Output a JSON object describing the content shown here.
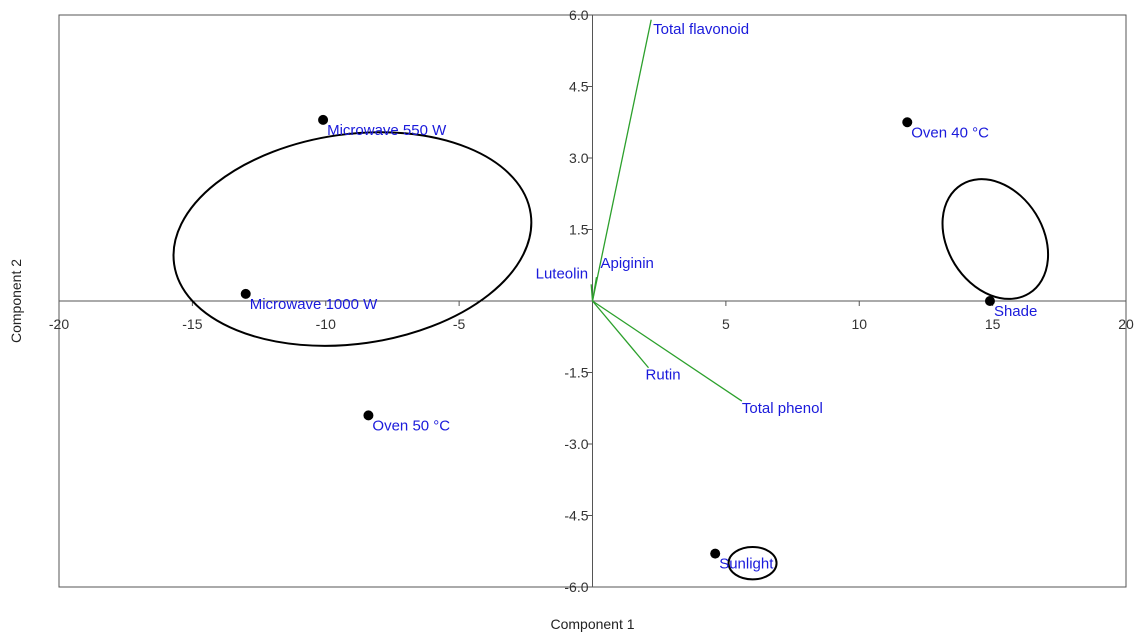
{
  "chart_data": {
    "type": "scatter",
    "subtype": "biplot",
    "title": "",
    "xlabel": "Component 1",
    "ylabel": "Component 2",
    "xlim": [
      -20,
      20
    ],
    "ylim": [
      -6.0,
      6.0
    ],
    "xticks": [
      "-20",
      "-15",
      "-10",
      "-5",
      "5",
      "10",
      "15",
      "20"
    ],
    "yticks": [
      "6.0",
      "4.5",
      "3.0",
      "1.5",
      "-1.5",
      "-3.0",
      "-4.5",
      "-6.0"
    ],
    "grid": false,
    "points": [
      {
        "label": "Microwave 550 W",
        "x": -10.1,
        "y": 3.8
      },
      {
        "label": "Microwave 1000 W",
        "x": -13.0,
        "y": 0.15
      },
      {
        "label": "Oven 50 °C",
        "x": -8.4,
        "y": -2.4
      },
      {
        "label": "Oven 40 °C",
        "x": 11.8,
        "y": 3.75
      },
      {
        "label": "Shade",
        "x": 14.9,
        "y": 0.0
      },
      {
        "label": "Sunlight",
        "x": 4.6,
        "y": -5.3
      }
    ],
    "loadings": [
      {
        "label": "Total flavonoid",
        "x": 2.2,
        "y": 5.9
      },
      {
        "label": "Apiginin",
        "x": 0.15,
        "y": 0.5
      },
      {
        "label": "Luteolin",
        "x": -0.05,
        "y": 0.35
      },
      {
        "label": "Rutin",
        "x": 2.1,
        "y": -1.4
      },
      {
        "label": "Total phenol",
        "x": 5.6,
        "y": -2.1
      }
    ],
    "groups": [
      {
        "cx": -9.0,
        "cy": 1.3,
        "rx": 13.5,
        "ry": 4.4,
        "rotation": -8
      },
      {
        "cx": 15.1,
        "cy": 1.3,
        "rx": 4.8,
        "ry": 2.0,
        "rotation": 58
      },
      {
        "cx": 6.0,
        "cy": -5.5,
        "rx": 1.8,
        "ry": 0.68,
        "rotation": 0
      }
    ],
    "colors": {
      "point": "#000000",
      "label": "#1a1adb",
      "loading": "#2ca02c",
      "axis": "#555555"
    }
  }
}
